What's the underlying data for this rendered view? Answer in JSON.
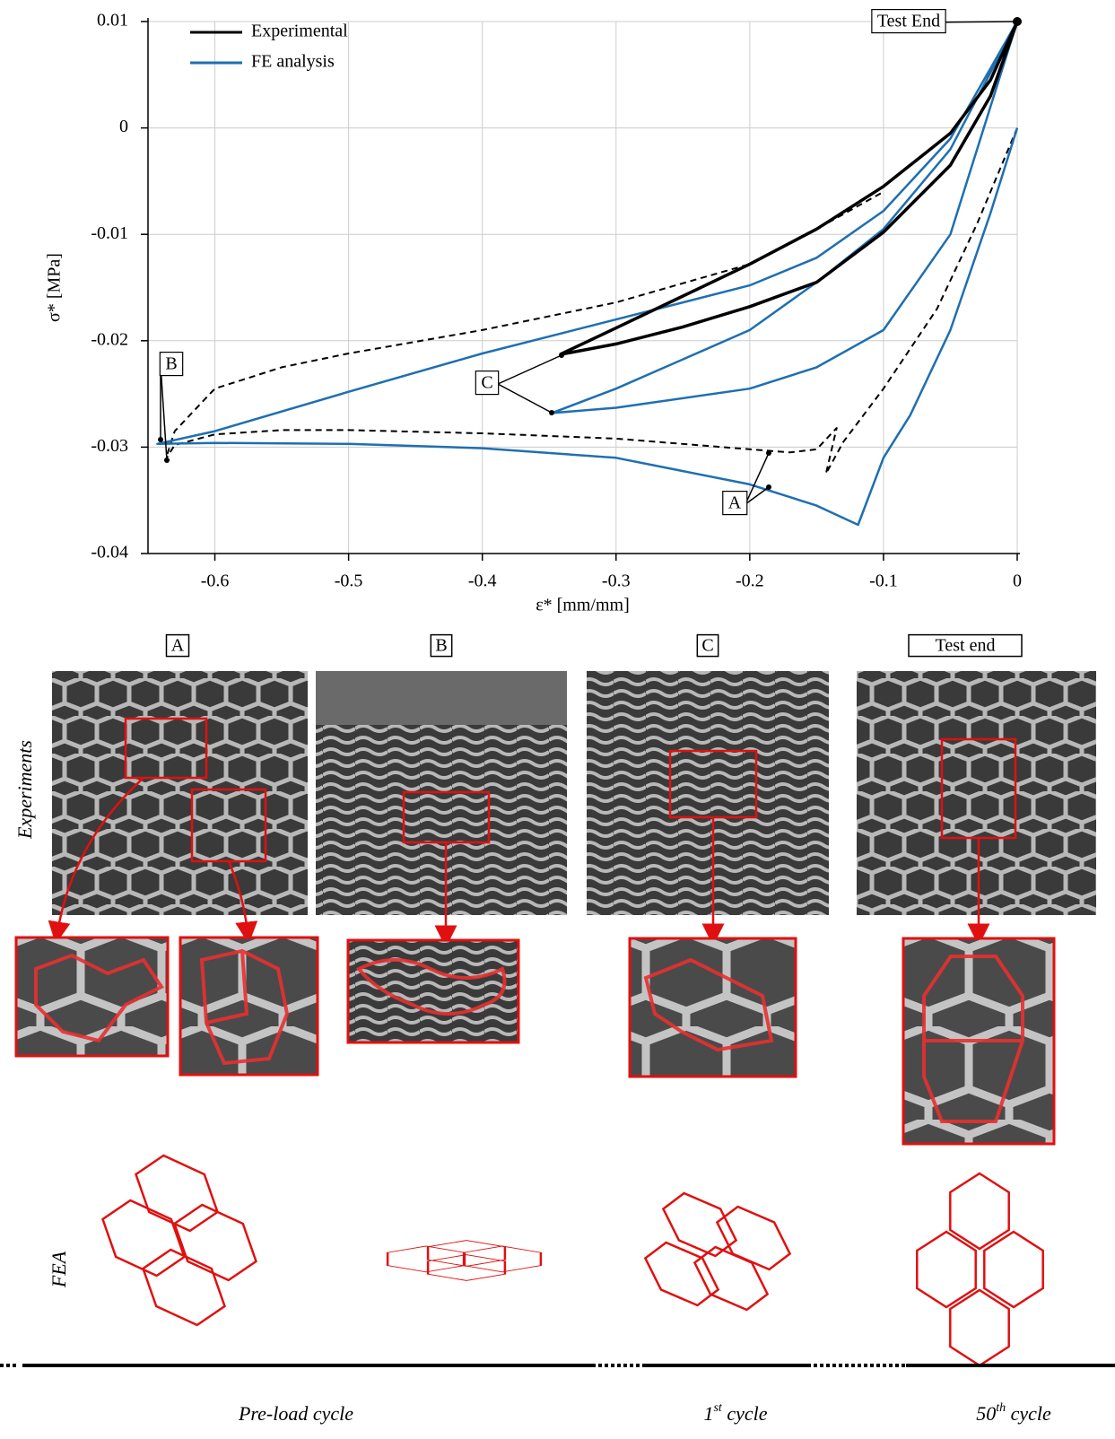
{
  "chart_data": {
    "type": "line",
    "xlabel": "ε* [mm/mm]",
    "ylabel": "σ* [MPa]",
    "xlim": [
      -0.65,
      0
    ],
    "ylim": [
      -0.04,
      0.01
    ],
    "xticks": [
      -0.6,
      -0.5,
      -0.4,
      -0.3,
      -0.2,
      -0.1,
      0
    ],
    "yticks": [
      0.01,
      0,
      -0.01,
      -0.02,
      -0.03,
      -0.04
    ],
    "grid": true,
    "legend": "upper left",
    "annotations": [
      "Test End",
      "A",
      "B",
      "C"
    ],
    "series": [
      {
        "name": "Experimental",
        "color": "#000000",
        "x": [
          -0.342,
          -0.3,
          -0.25,
          -0.2,
          -0.15,
          -0.1,
          -0.05,
          -0.02,
          0,
          -0.02,
          -0.05,
          -0.1,
          -0.15,
          -0.2,
          -0.25,
          -0.3,
          -0.342
        ],
        "values": [
          -0.0213,
          -0.0188,
          -0.0158,
          -0.0128,
          -0.0095,
          -0.0055,
          -0.0005,
          0.0045,
          0.01,
          0.003,
          -0.0035,
          -0.0098,
          -0.0145,
          -0.0168,
          -0.0187,
          -0.0203,
          -0.0213
        ]
      },
      {
        "name": "FE analysis",
        "color": "#1f6fb0",
        "x": [
          0,
          -0.02,
          -0.05,
          -0.08,
          -0.1,
          -0.119,
          -0.15,
          -0.2,
          -0.3,
          -0.4,
          -0.5,
          -0.6,
          -0.643,
          -0.6,
          -0.5,
          -0.4,
          -0.3,
          -0.2,
          -0.15,
          -0.1,
          -0.05,
          0,
          -0.02,
          -0.05,
          -0.1,
          -0.15,
          -0.2,
          -0.3,
          -0.348,
          -0.3,
          -0.2,
          -0.15,
          -0.1,
          -0.05,
          0
        ],
        "values": [
          0,
          -0.008,
          -0.019,
          -0.027,
          -0.031,
          -0.0373,
          -0.0355,
          -0.0335,
          -0.031,
          -0.0301,
          -0.0297,
          -0.0296,
          -0.0297,
          -0.0285,
          -0.0248,
          -0.0212,
          -0.018,
          -0.0148,
          -0.0122,
          -0.0078,
          -0.001,
          0.01,
          0.002,
          -0.01,
          -0.019,
          -0.0225,
          -0.0245,
          -0.0263,
          -0.0268,
          -0.0245,
          -0.019,
          -0.0145,
          -0.0095,
          -0.002,
          0.01
        ]
      },
      {
        "color": "#000000",
        "dashed": true,
        "x": [
          0,
          -0.03,
          -0.06,
          -0.1,
          -0.13,
          -0.143,
          -0.135,
          -0.15,
          -0.17,
          -0.2,
          -0.3,
          -0.4,
          -0.5,
          -0.55,
          -0.6,
          -0.63,
          -0.637,
          -0.63,
          -0.6,
          -0.55,
          -0.5,
          -0.4,
          -0.3,
          -0.2,
          -0.15,
          -0.1
        ],
        "values": [
          0,
          -0.009,
          -0.017,
          -0.0245,
          -0.0295,
          -0.0325,
          -0.0282,
          -0.0302,
          -0.0305,
          -0.0302,
          -0.0292,
          -0.0287,
          -0.0284,
          -0.0284,
          -0.0288,
          -0.0298,
          -0.0312,
          -0.0285,
          -0.0245,
          -0.0225,
          -0.0212,
          -0.019,
          -0.0164,
          -0.0128,
          -0.0095,
          -0.006
        ]
      }
    ]
  },
  "panels": {
    "labels": [
      "A",
      "B",
      "C",
      "Test end"
    ],
    "rows": [
      "Experiments",
      "FEA"
    ],
    "cycles": [
      {
        "prefix": "Pre-load cycle"
      },
      {
        "prefix": "1",
        "sup": "st",
        "suffix": " cycle"
      },
      {
        "prefix": "50",
        "sup": "th",
        "suffix": " cycle"
      }
    ]
  }
}
